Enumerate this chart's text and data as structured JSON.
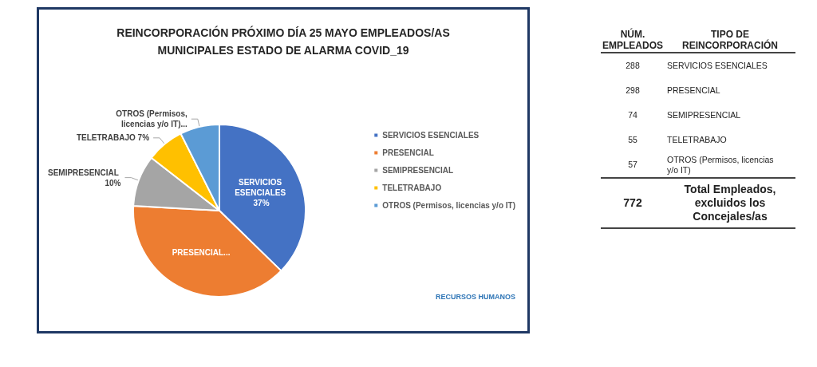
{
  "chart_data": [
    {
      "type": "pie",
      "title": "REINCORPORACIÓN PRÓXIMO DÍA 25 MAYO EMPLEADOS/AS MUNICIPALES ESTADO DE ALARMA COVID_19",
      "categories": [
        "SERVICIOS ESENCIALES",
        "PRESENCIAL",
        "SEMIPRESENCIAL",
        "TELETRABAJO",
        "OTROS (Permisos, licencias y/o IT)"
      ],
      "values": [
        37.3,
        38.6,
        9.6,
        7.1,
        7.4
      ],
      "colors": [
        "#4472c4",
        "#ed7d31",
        "#a5a5a5",
        "#ffc000",
        "#5b9bd5"
      ],
      "value_labels": [
        "SERVICIOS ESENCIALES 37%",
        "PRESENCIAL...",
        "SEMIPRESENCIAL 10%",
        "TELETRABAJO 7%",
        "OTROS (Permisos, licencias y/o IT)..."
      ],
      "annotations": [
        "RECURSOS HUMANOS"
      ],
      "legend": "right"
    },
    {
      "type": "other",
      "categories": [
        "SERVICIOS ESENCIALES",
        "PRESENCIAL",
        "SEMIPRESENCIAL",
        "TELETRABAJO",
        "OTROS (Permisos, licencias y/o IT)"
      ],
      "values": [
        288,
        298,
        74,
        55,
        57
      ],
      "data_labels": true,
      "totals": [
        "772"
      ],
      "annotations": [
        "NÚM. EMPLEADOS",
        "TIPO DE REINCORPORACIÓN",
        "Total Empleados, excluidos los Concejales/as"
      ]
    }
  ]
}
